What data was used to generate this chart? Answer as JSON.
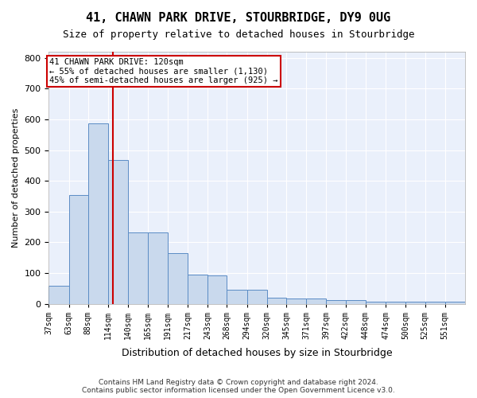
{
  "title": "41, CHAWN PARK DRIVE, STOURBRIDGE, DY9 0UG",
  "subtitle": "Size of property relative to detached houses in Stourbridge",
  "xlabel": "Distribution of detached houses by size in Stourbridge",
  "ylabel": "Number of detached properties",
  "bar_color": "#c9d9ed",
  "bar_edge_color": "#5b8cc5",
  "background_color": "#eaf0fb",
  "grid_color": "#ffffff",
  "annotation_text": "41 CHAWN PARK DRIVE: 120sqm\n← 55% of detached houses are smaller (1,130)\n45% of semi-detached houses are larger (925) →",
  "vline_x": 120,
  "vline_color": "#cc0000",
  "footer": "Contains HM Land Registry data © Crown copyright and database right 2024.\nContains public sector information licensed under the Open Government Licence v3.0.",
  "categories": [
    "37sqm",
    "63sqm",
    "88sqm",
    "114sqm",
    "140sqm",
    "165sqm",
    "191sqm",
    "217sqm",
    "243sqm",
    "268sqm",
    "294sqm",
    "320sqm",
    "345sqm",
    "371sqm",
    "397sqm",
    "422sqm",
    "448sqm",
    "474sqm",
    "500sqm",
    "525sqm",
    "551sqm"
  ],
  "bin_edges": [
    37,
    63,
    88,
    114,
    140,
    165,
    191,
    217,
    243,
    268,
    294,
    320,
    345,
    371,
    397,
    422,
    448,
    474,
    500,
    525,
    551,
    577
  ],
  "values": [
    58,
    355,
    588,
    467,
    233,
    232,
    165,
    95,
    93,
    45,
    45,
    20,
    18,
    18,
    13,
    13,
    6,
    6,
    6,
    6,
    6
  ],
  "ylim": [
    0,
    820
  ],
  "yticks": [
    0,
    100,
    200,
    300,
    400,
    500,
    600,
    700,
    800
  ]
}
